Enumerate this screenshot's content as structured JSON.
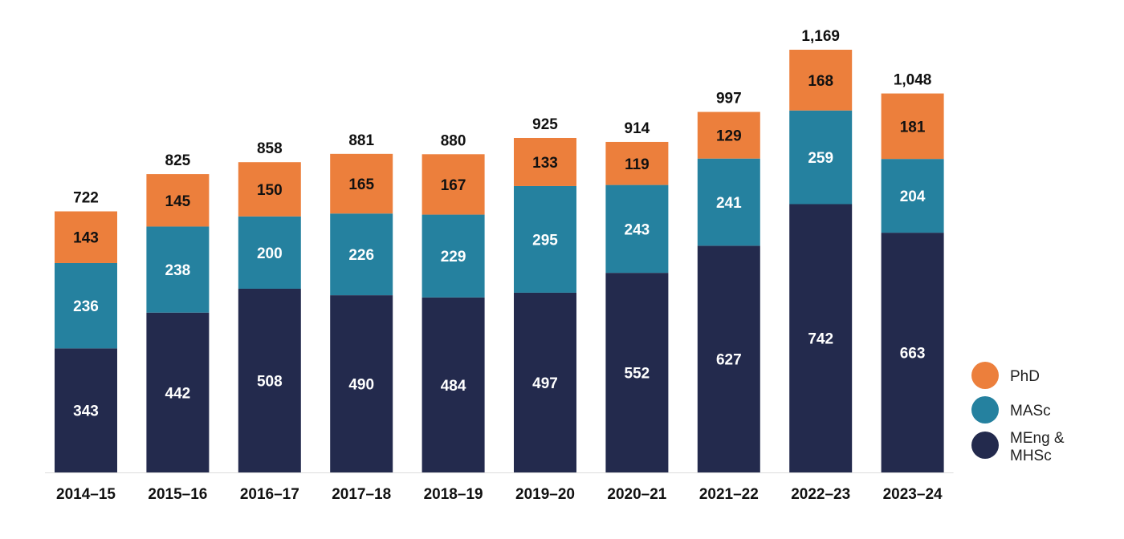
{
  "chart_data": {
    "type": "bar",
    "stacked": true,
    "categories": [
      "2014–15",
      "2015–16",
      "2016–17",
      "2017–18",
      "2018–19",
      "2019–20",
      "2020–21",
      "2021–22",
      "2022–23",
      "2023–24"
    ],
    "series": [
      {
        "name": "MEng & MHSc",
        "color": "#232a4d",
        "label_color": "#ffffff",
        "values": [
          343,
          442,
          508,
          490,
          484,
          497,
          552,
          627,
          742,
          663
        ]
      },
      {
        "name": "MASc",
        "color": "#25819f",
        "label_color": "#ffffff",
        "values": [
          236,
          238,
          200,
          226,
          229,
          295,
          243,
          241,
          259,
          204
        ]
      },
      {
        "name": "PhD",
        "color": "#ec7f3c",
        "label_color": "#111111",
        "values": [
          143,
          145,
          150,
          165,
          167,
          133,
          119,
          129,
          168,
          181
        ]
      }
    ],
    "totals": [
      "722",
      "825",
      "858",
      "881",
      "880",
      "925",
      "914",
      "997",
      "1,169",
      "1,048"
    ],
    "legend": {
      "position": "right",
      "items": [
        {
          "label": "PhD",
          "color": "#ec7f3c"
        },
        {
          "label": "MASc",
          "color": "#25819f"
        },
        {
          "label_lines": [
            "MEng &",
            "MHSc"
          ],
          "color": "#232a4d"
        }
      ]
    },
    "ylim": [
      0,
      1169
    ],
    "grid": false,
    "axis_line_color": "#dddddd"
  }
}
